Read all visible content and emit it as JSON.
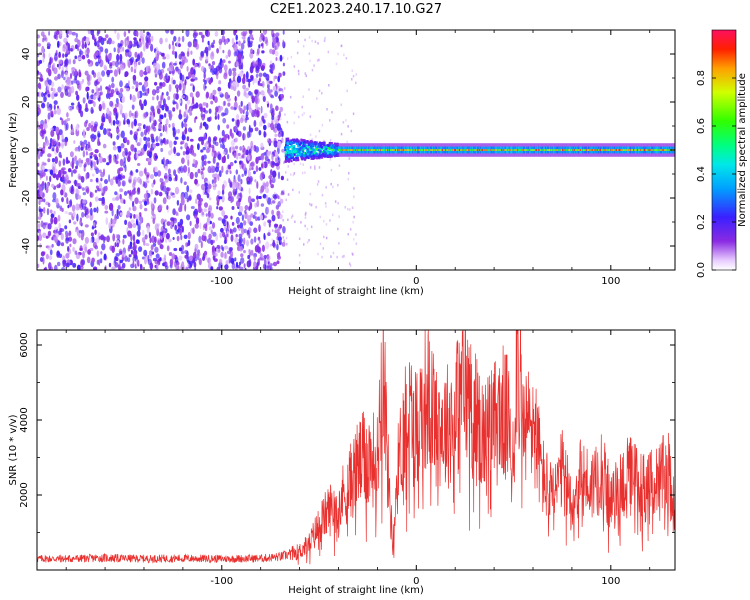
{
  "title": "C2E1.2023.240.17.10.G27",
  "chart_data": [
    {
      "type": "heatmap",
      "xlabel": "Height of straight line (km)",
      "ylabel": "Frequency (Hz)",
      "xlim": [
        -195,
        133
      ],
      "ylim": [
        -50,
        50
      ],
      "xticks": [
        -100,
        0,
        100
      ],
      "yticks": [
        -40,
        -20,
        0,
        20,
        40
      ],
      "colorbar": {
        "label": "Normalized spectral amplitude",
        "range": [
          0,
          1
        ],
        "ticks": [
          0.0,
          0.2,
          0.4,
          0.6,
          0.8
        ],
        "colormap": "hsv-rainbow"
      },
      "regions": [
        {
          "x_from": -195,
          "x_to": -68,
          "description_level": 0.15,
          "freq_spread": 50
        },
        {
          "x_from": -68,
          "x_to": -40,
          "description_level": 0.45,
          "freq_spread": 5
        },
        {
          "x_from": -40,
          "x_to": 133,
          "description_level": 0.9,
          "freq_spread": 2
        }
      ]
    },
    {
      "type": "line",
      "xlabel": "Height of straight line (km)",
      "ylabel": "SNR (10 * v/v)",
      "xlim": [
        -195,
        133
      ],
      "ylim": [
        0,
        6400
      ],
      "xticks": [
        -100,
        0,
        100
      ],
      "yticks": [
        2000,
        4000,
        6000
      ],
      "line_color": "#e8302e",
      "series": [
        {
          "x": [
            -195,
            -180,
            -160,
            -140,
            -120,
            -100,
            -80,
            -70,
            -60,
            -55,
            -50,
            -45,
            -40,
            -35,
            -30,
            -25,
            -20,
            -17,
            -15,
            -12,
            -10,
            -5,
            0,
            5,
            10,
            15,
            20,
            25,
            30,
            35,
            40,
            45,
            50,
            52,
            55,
            60,
            65,
            70,
            75,
            80,
            85,
            90,
            95,
            100,
            105,
            110,
            115,
            120,
            125,
            130,
            133
          ],
          "y": [
            300,
            300,
            320,
            300,
            310,
            300,
            310,
            350,
            500,
            700,
            1200,
            1600,
            1800,
            2200,
            2800,
            3000,
            2900,
            6100,
            3000,
            600,
            2500,
            4300,
            3800,
            4700,
            4000,
            3800,
            4200,
            5000,
            4100,
            3500,
            3900,
            4200,
            3500,
            6200,
            3600,
            4000,
            2500,
            1900,
            2600,
            1800,
            2500,
            2200,
            2900,
            1700,
            2300,
            2500,
            2300,
            2200,
            2400,
            2600,
            1500
          ]
        }
      ]
    }
  ]
}
